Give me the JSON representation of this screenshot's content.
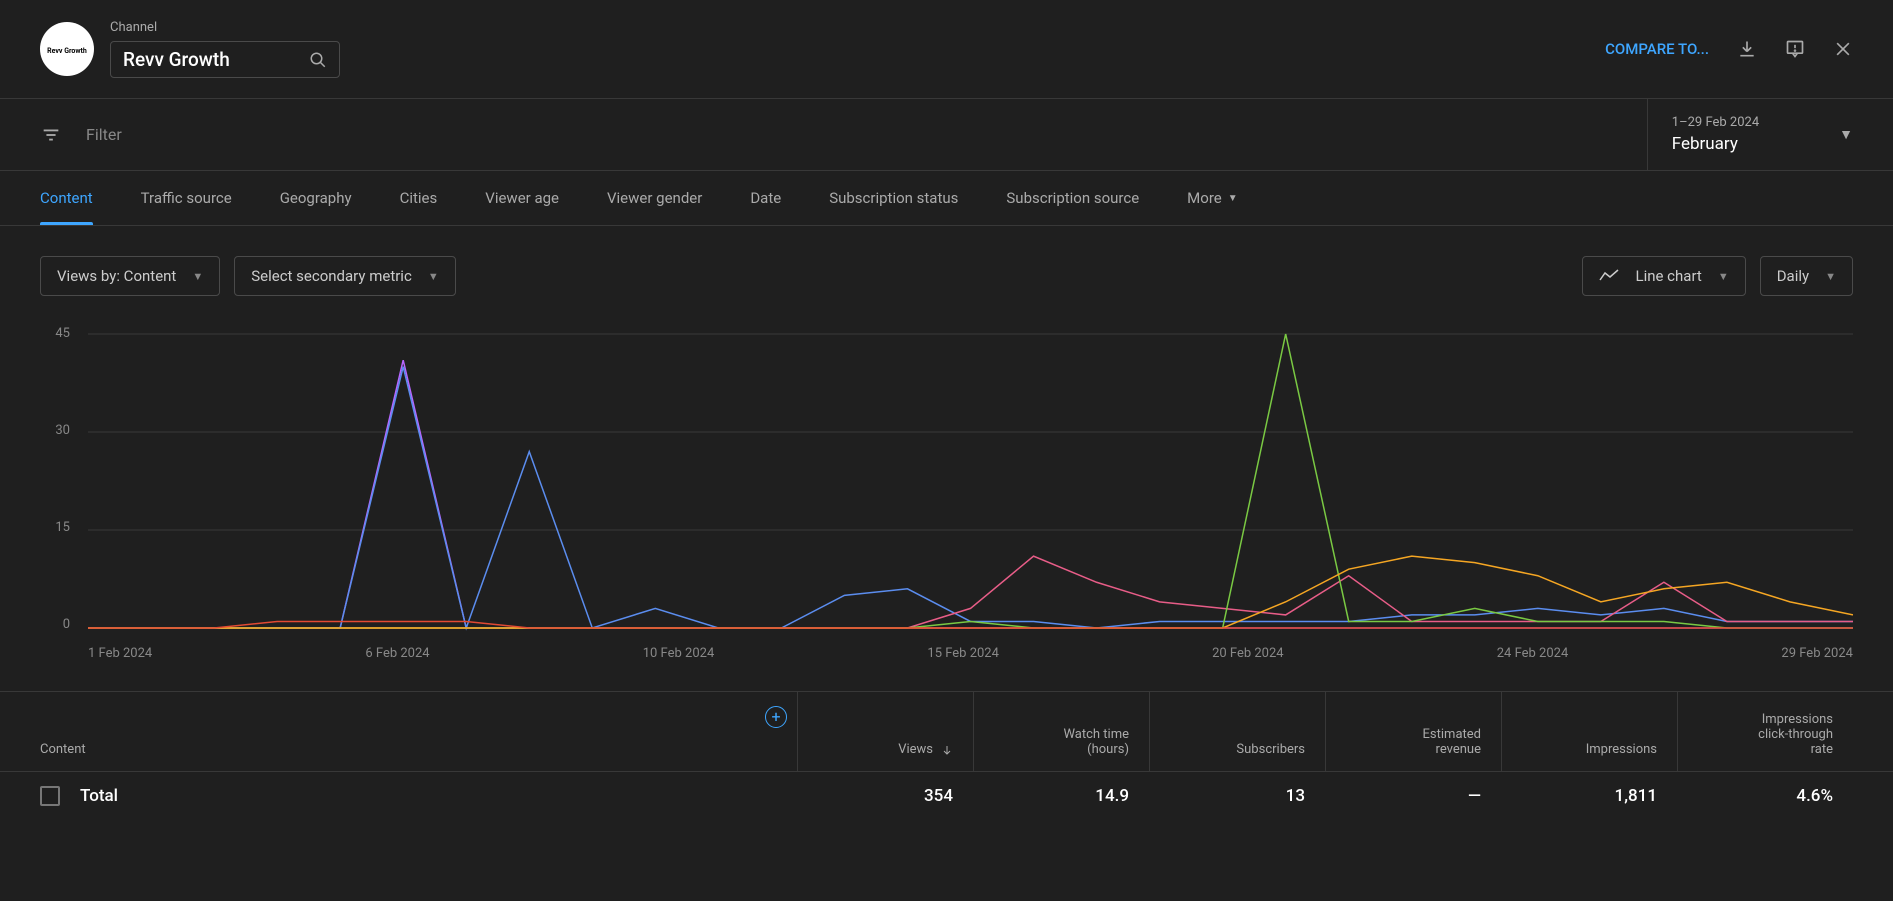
{
  "header": {
    "channel_label": "Channel",
    "channel_name": "Revv Growth",
    "avatar_text": "Revv Growth",
    "compare_label": "COMPARE TO..."
  },
  "filter": {
    "placeholder": "Filter",
    "date_range": "1–29 Feb 2024",
    "date_label": "February"
  },
  "tabs": {
    "items": [
      "Content",
      "Traffic source",
      "Geography",
      "Cities",
      "Viewer age",
      "Viewer gender",
      "Date",
      "Subscription status",
      "Subscription source"
    ],
    "more_label": "More",
    "active": 0
  },
  "controls": {
    "views_by": "Views by: Content",
    "secondary": "Select secondary metric",
    "chart_type": "Line chart",
    "granularity": "Daily"
  },
  "chart": {
    "ylim": [
      0,
      45
    ],
    "ytick_step": 15,
    "yticks": [
      "45",
      "30",
      "15",
      "0"
    ],
    "xlabels": [
      "1 Feb 2024",
      "6 Feb 2024",
      "10 Feb 2024",
      "15 Feb 2024",
      "20 Feb 2024",
      "24 Feb 2024",
      "29 Feb 2024"
    ],
    "grid_color": "#3a3a3a",
    "background_color": "#1f1f1f",
    "series": [
      {
        "name": "purple",
        "color": "#b866ff",
        "data": [
          0,
          0,
          0,
          0,
          0,
          41,
          0,
          0,
          0,
          0,
          0,
          0,
          0,
          0,
          0,
          0,
          0,
          0,
          0,
          0,
          0,
          0,
          0,
          0,
          0,
          0,
          0,
          0,
          0
        ]
      },
      {
        "name": "blue",
        "color": "#5b8def",
        "data": [
          0,
          0,
          0,
          0,
          0,
          40,
          0,
          27,
          0,
          3,
          0,
          0,
          5,
          6,
          1,
          1,
          0,
          1,
          1,
          1,
          1,
          2,
          2,
          3,
          2,
          3,
          1,
          1,
          1
        ]
      },
      {
        "name": "pink",
        "color": "#e85d88",
        "data": [
          0,
          0,
          0,
          0,
          0,
          0,
          0,
          0,
          0,
          0,
          0,
          0,
          0,
          0,
          3,
          11,
          7,
          4,
          3,
          2,
          8,
          1,
          1,
          1,
          1,
          7,
          1,
          1,
          1
        ]
      },
      {
        "name": "green",
        "color": "#7ac943",
        "data": [
          0,
          0,
          0,
          0,
          0,
          0,
          0,
          0,
          0,
          0,
          0,
          0,
          0,
          0,
          1,
          0,
          0,
          0,
          0,
          45,
          1,
          1,
          3,
          1,
          1,
          1,
          0,
          0,
          0
        ]
      },
      {
        "name": "orange",
        "color": "#f5a623",
        "data": [
          0,
          0,
          0,
          0,
          0,
          0,
          0,
          0,
          0,
          0,
          0,
          0,
          0,
          0,
          0,
          0,
          0,
          0,
          0,
          4,
          9,
          11,
          10,
          8,
          4,
          6,
          7,
          4,
          2
        ]
      },
      {
        "name": "red",
        "color": "#e24a33",
        "data": [
          0,
          0,
          0,
          1,
          1,
          1,
          1,
          0,
          0,
          0,
          0,
          0,
          0,
          0,
          0,
          0,
          0,
          0,
          0,
          0,
          0,
          0,
          0,
          0,
          0,
          0,
          0,
          0,
          0
        ]
      }
    ]
  },
  "table": {
    "columns": {
      "content": "Content",
      "views": "Views",
      "watch_time": "Watch time (hours)",
      "subscribers": "Subscribers",
      "revenue": "Estimated revenue",
      "impressions": "Impressions",
      "ctr": "Impressions click-through rate"
    },
    "total_label": "Total",
    "total": {
      "views": "354",
      "watch_time": "14.9",
      "subscribers": "13",
      "revenue": "—",
      "impressions": "1,811",
      "ctr": "4.6%"
    }
  }
}
